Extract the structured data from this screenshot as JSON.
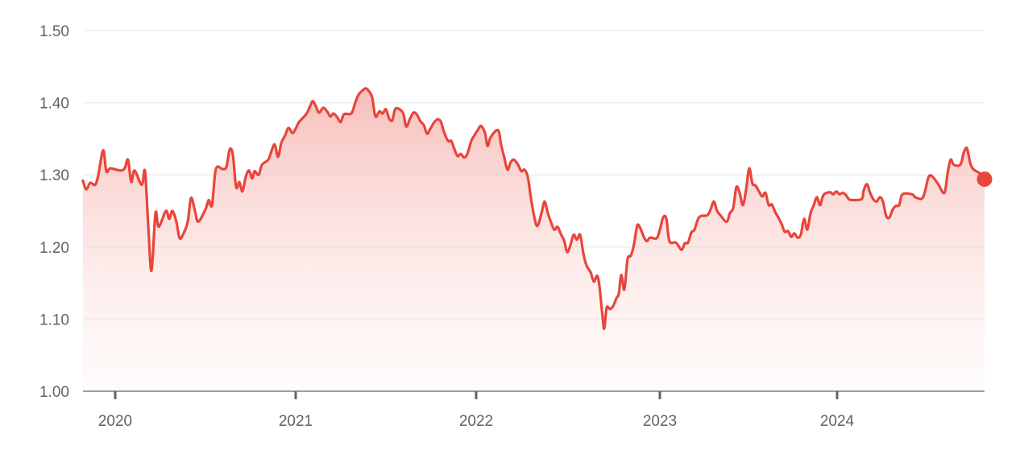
{
  "chart_data": {
    "type": "area",
    "title": "",
    "xlabel": "",
    "ylabel": "",
    "ylim": [
      1.0,
      1.5
    ],
    "xlim": [
      2019.821,
      2024.817
    ],
    "grid": true,
    "legend": "none",
    "y_ticks": [
      "1.00",
      "1.10",
      "1.20",
      "1.30",
      "1.40",
      "1.50"
    ],
    "x_ticks": [
      "2020",
      "2021",
      "2022",
      "2023",
      "2024"
    ],
    "colors": {
      "line": "#e8453c",
      "fill": "#f8c9c5",
      "grid": "#eeeeee",
      "axis": "#9aa0a6",
      "text": "#5f6368"
    },
    "series": [
      {
        "points": [
          [
            2019.821,
            1.292
          ],
          [
            2019.839,
            1.28
          ],
          [
            2019.862,
            1.289
          ],
          [
            2019.888,
            1.286
          ],
          [
            2019.906,
            1.299
          ],
          [
            2019.933,
            1.334
          ],
          [
            2019.951,
            1.305
          ],
          [
            2019.973,
            1.309
          ],
          [
            2020.031,
            1.306
          ],
          [
            2020.054,
            1.31
          ],
          [
            2020.071,
            1.321
          ],
          [
            2020.089,
            1.29
          ],
          [
            2020.107,
            1.306
          ],
          [
            2020.147,
            1.286
          ],
          [
            2020.165,
            1.305
          ],
          [
            2020.183,
            1.23
          ],
          [
            2020.201,
            1.167
          ],
          [
            2020.223,
            1.247
          ],
          [
            2020.241,
            1.228
          ],
          [
            2020.281,
            1.25
          ],
          [
            2020.299,
            1.239
          ],
          [
            2020.317,
            1.25
          ],
          [
            2020.339,
            1.235
          ],
          [
            2020.357,
            1.212
          ],
          [
            2020.379,
            1.219
          ],
          [
            2020.402,
            1.235
          ],
          [
            2020.42,
            1.268
          ],
          [
            2020.442,
            1.25
          ],
          [
            2020.46,
            1.235
          ],
          [
            2020.5,
            1.252
          ],
          [
            2020.518,
            1.265
          ],
          [
            2020.536,
            1.258
          ],
          [
            2020.558,
            1.308
          ],
          [
            2020.594,
            1.308
          ],
          [
            2020.616,
            1.311
          ],
          [
            2020.634,
            1.335
          ],
          [
            2020.652,
            1.328
          ],
          [
            2020.67,
            1.283
          ],
          [
            2020.688,
            1.29
          ],
          [
            2020.705,
            1.277
          ],
          [
            2020.723,
            1.297
          ],
          [
            2020.741,
            1.306
          ],
          [
            2020.759,
            1.295
          ],
          [
            2020.772,
            1.305
          ],
          [
            2020.795,
            1.3
          ],
          [
            2020.813,
            1.314
          ],
          [
            2020.848,
            1.321
          ],
          [
            2020.866,
            1.333
          ],
          [
            2020.884,
            1.342
          ],
          [
            2020.902,
            1.325
          ],
          [
            2020.92,
            1.344
          ],
          [
            2020.942,
            1.355
          ],
          [
            2020.96,
            1.365
          ],
          [
            2020.982,
            1.358
          ],
          [
            2021.0,
            1.364
          ],
          [
            2021.018,
            1.373
          ],
          [
            2021.058,
            1.384
          ],
          [
            2021.076,
            1.393
          ],
          [
            2021.094,
            1.402
          ],
          [
            2021.112,
            1.395
          ],
          [
            2021.129,
            1.386
          ],
          [
            2021.152,
            1.393
          ],
          [
            2021.174,
            1.388
          ],
          [
            2021.192,
            1.381
          ],
          [
            2021.21,
            1.385
          ],
          [
            2021.232,
            1.379
          ],
          [
            2021.25,
            1.373
          ],
          [
            2021.268,
            1.384
          ],
          [
            2021.308,
            1.385
          ],
          [
            2021.33,
            1.4
          ],
          [
            2021.348,
            1.411
          ],
          [
            2021.366,
            1.416
          ],
          [
            2021.388,
            1.42
          ],
          [
            2021.406,
            1.416
          ],
          [
            2021.424,
            1.407
          ],
          [
            2021.442,
            1.381
          ],
          [
            2021.464,
            1.388
          ],
          [
            2021.482,
            1.385
          ],
          [
            2021.5,
            1.391
          ],
          [
            2021.518,
            1.378
          ],
          [
            2021.536,
            1.376
          ],
          [
            2021.554,
            1.392
          ],
          [
            2021.594,
            1.386
          ],
          [
            2021.612,
            1.367
          ],
          [
            2021.634,
            1.378
          ],
          [
            2021.652,
            1.386
          ],
          [
            2021.67,
            1.384
          ],
          [
            2021.692,
            1.374
          ],
          [
            2021.71,
            1.369
          ],
          [
            2021.728,
            1.357
          ],
          [
            2021.746,
            1.364
          ],
          [
            2021.768,
            1.373
          ],
          [
            2021.786,
            1.377
          ],
          [
            2021.804,
            1.374
          ],
          [
            2021.821,
            1.36
          ],
          [
            2021.844,
            1.347
          ],
          [
            2021.862,
            1.347
          ],
          [
            2021.879,
            1.336
          ],
          [
            2021.897,
            1.326
          ],
          [
            2021.915,
            1.329
          ],
          [
            2021.933,
            1.324
          ],
          [
            2021.951,
            1.329
          ],
          [
            2021.973,
            1.347
          ],
          [
            2021.991,
            1.355
          ],
          [
            2022.009,
            1.362
          ],
          [
            2022.027,
            1.368
          ],
          [
            2022.049,
            1.358
          ],
          [
            2022.063,
            1.34
          ],
          [
            2022.08,
            1.352
          ],
          [
            2022.121,
            1.362
          ],
          [
            2022.138,
            1.342
          ],
          [
            2022.156,
            1.324
          ],
          [
            2022.174,
            1.307
          ],
          [
            2022.192,
            1.318
          ],
          [
            2022.21,
            1.321
          ],
          [
            2022.232,
            1.314
          ],
          [
            2022.25,
            1.305
          ],
          [
            2022.268,
            1.307
          ],
          [
            2022.286,
            1.297
          ],
          [
            2022.304,
            1.267
          ],
          [
            2022.321,
            1.243
          ],
          [
            2022.339,
            1.229
          ],
          [
            2022.362,
            1.247
          ],
          [
            2022.379,
            1.263
          ],
          [
            2022.397,
            1.247
          ],
          [
            2022.415,
            1.234
          ],
          [
            2022.433,
            1.224
          ],
          [
            2022.451,
            1.228
          ],
          [
            2022.469,
            1.218
          ],
          [
            2022.487,
            1.209
          ],
          [
            2022.504,
            1.193
          ],
          [
            2022.522,
            1.202
          ],
          [
            2022.54,
            1.217
          ],
          [
            2022.558,
            1.21
          ],
          [
            2022.576,
            1.217
          ],
          [
            2022.594,
            1.191
          ],
          [
            2022.612,
            1.174
          ],
          [
            2022.634,
            1.165
          ],
          [
            2022.652,
            1.152
          ],
          [
            2022.67,
            1.16
          ],
          [
            2022.683,
            1.146
          ],
          [
            2022.701,
            1.102
          ],
          [
            2022.71,
            1.087
          ],
          [
            2022.723,
            1.116
          ],
          [
            2022.741,
            1.114
          ],
          [
            2022.759,
            1.118
          ],
          [
            2022.777,
            1.129
          ],
          [
            2022.79,
            1.135
          ],
          [
            2022.804,
            1.161
          ],
          [
            2022.821,
            1.141
          ],
          [
            2022.839,
            1.183
          ],
          [
            2022.857,
            1.188
          ],
          [
            2022.875,
            1.204
          ],
          [
            2022.893,
            1.23
          ],
          [
            2022.911,
            1.225
          ],
          [
            2022.929,
            1.214
          ],
          [
            2022.946,
            1.208
          ],
          [
            2022.964,
            1.213
          ],
          [
            2023.0,
            1.212
          ],
          [
            2023.018,
            1.224
          ],
          [
            2023.036,
            1.241
          ],
          [
            2023.054,
            1.239
          ],
          [
            2023.071,
            1.208
          ],
          [
            2023.107,
            1.206
          ],
          [
            2023.138,
            1.196
          ],
          [
            2023.156,
            1.205
          ],
          [
            2023.174,
            1.206
          ],
          [
            2023.192,
            1.22
          ],
          [
            2023.21,
            1.224
          ],
          [
            2023.228,
            1.238
          ],
          [
            2023.246,
            1.243
          ],
          [
            2023.281,
            1.244
          ],
          [
            2023.299,
            1.252
          ],
          [
            2023.317,
            1.263
          ],
          [
            2023.335,
            1.25
          ],
          [
            2023.353,
            1.244
          ],
          [
            2023.388,
            1.235
          ],
          [
            2023.406,
            1.247
          ],
          [
            2023.424,
            1.254
          ],
          [
            2023.442,
            1.283
          ],
          [
            2023.46,
            1.275
          ],
          [
            2023.478,
            1.258
          ],
          [
            2023.496,
            1.28
          ],
          [
            2023.513,
            1.309
          ],
          [
            2023.531,
            1.288
          ],
          [
            2023.549,
            1.285
          ],
          [
            2023.567,
            1.277
          ],
          [
            2023.585,
            1.27
          ],
          [
            2023.603,
            1.275
          ],
          [
            2023.621,
            1.258
          ],
          [
            2023.638,
            1.259
          ],
          [
            2023.656,
            1.249
          ],
          [
            2023.674,
            1.241
          ],
          [
            2023.692,
            1.232
          ],
          [
            2023.71,
            1.221
          ],
          [
            2023.728,
            1.222
          ],
          [
            2023.746,
            1.214
          ],
          [
            2023.763,
            1.219
          ],
          [
            2023.781,
            1.213
          ],
          [
            2023.799,
            1.217
          ],
          [
            2023.817,
            1.239
          ],
          [
            2023.835,
            1.224
          ],
          [
            2023.853,
            1.247
          ],
          [
            2023.871,
            1.258
          ],
          [
            2023.888,
            1.269
          ],
          [
            2023.906,
            1.258
          ],
          [
            2023.924,
            1.272
          ],
          [
            2023.96,
            1.276
          ],
          [
            2023.978,
            1.273
          ],
          [
            2023.996,
            1.277
          ],
          [
            2024.013,
            1.273
          ],
          [
            2024.031,
            1.275
          ],
          [
            2024.049,
            1.272
          ],
          [
            2024.067,
            1.266
          ],
          [
            2024.103,
            1.265
          ],
          [
            2024.138,
            1.267
          ],
          [
            2024.147,
            1.278
          ],
          [
            2024.165,
            1.287
          ],
          [
            2024.183,
            1.275
          ],
          [
            2024.201,
            1.266
          ],
          [
            2024.219,
            1.263
          ],
          [
            2024.237,
            1.269
          ],
          [
            2024.254,
            1.263
          ],
          [
            2024.272,
            1.243
          ],
          [
            2024.29,
            1.241
          ],
          [
            2024.308,
            1.252
          ],
          [
            2024.326,
            1.257
          ],
          [
            2024.344,
            1.258
          ],
          [
            2024.362,
            1.273
          ],
          [
            2024.415,
            1.273
          ],
          [
            2024.433,
            1.269
          ],
          [
            2024.469,
            1.267
          ],
          [
            2024.487,
            1.277
          ],
          [
            2024.504,
            1.295
          ],
          [
            2024.522,
            1.299
          ],
          [
            2024.558,
            1.288
          ],
          [
            2024.594,
            1.275
          ],
          [
            2024.612,
            1.302
          ],
          [
            2024.629,
            1.321
          ],
          [
            2024.647,
            1.314
          ],
          [
            2024.683,
            1.314
          ],
          [
            2024.701,
            1.33
          ],
          [
            2024.719,
            1.337
          ],
          [
            2024.737,
            1.317
          ],
          [
            2024.754,
            1.308
          ],
          [
            2024.79,
            1.302
          ],
          [
            2024.817,
            1.294
          ]
        ]
      }
    ]
  }
}
